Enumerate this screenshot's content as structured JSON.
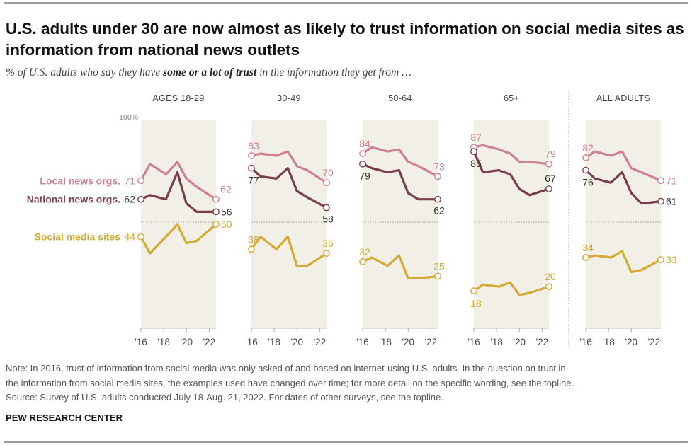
{
  "title": "U.S. adults under 30 are now almost as likely to trust information on social media sites as information from national news outlets",
  "subtitle": {
    "pre": "% of U.S. adults who say they have ",
    "bold": "some or a lot of trust",
    "post": " in the information they get from …"
  },
  "notes": {
    "line1": "Note: In 2016, trust of information from social media was only asked of and based on internet-using U.S. adults. In the question on trust in",
    "line2": "the information from social media sites, the examples used have changed over time; for more detail on the specific wording, see the topline.",
    "line3": "Source: Survey of U.S. adults conducted July 18-Aug. 21, 2022. For dates of other surveys, see the topline.",
    "org": "PEW RESEARCH CENTER"
  },
  "colors": {
    "local": "#cf7f92",
    "national": "#7b3c4c",
    "social": "#d4aa34",
    "panel_bg": "#f1efe6"
  },
  "chart_data": {
    "type": "line",
    "ylim": [
      0,
      100
    ],
    "y_top_label": "100%",
    "x_ticks": [
      "'16",
      "'18",
      "'20",
      "'22"
    ],
    "series_labels": {
      "local": "Local news orgs.",
      "national": "National news orgs.",
      "social": "Social media sites"
    },
    "panels": [
      {
        "name": "AGES 18-29",
        "local": {
          "x": [
            2016,
            2016.8,
            2018.2,
            2019.2,
            2020,
            2020.9,
            2022.6
          ],
          "y": [
            71,
            79,
            74,
            80,
            72,
            68,
            62
          ],
          "start_label": "71",
          "end_label": "62"
        },
        "national": {
          "x": [
            2016,
            2016.8,
            2018.2,
            2019.2,
            2020,
            2020.9,
            2022.6
          ],
          "y": [
            62,
            64,
            62,
            75,
            60,
            56,
            56
          ],
          "start_label": "62",
          "end_label": "56"
        },
        "social": {
          "x": [
            2016,
            2016.8,
            2018.2,
            2019.2,
            2020,
            2020.9,
            2022.6
          ],
          "y": [
            44,
            36,
            44,
            50,
            41,
            42,
            50
          ],
          "start_label": "44",
          "end_label": "50"
        }
      },
      {
        "name": "30-49",
        "local": {
          "x": [
            2016,
            2016.8,
            2018.2,
            2019.2,
            2020,
            2020.9,
            2022.6
          ],
          "y": [
            83,
            84,
            83,
            85,
            78,
            76,
            70
          ],
          "start_label": "83",
          "end_label": "70"
        },
        "national": {
          "x": [
            2016,
            2016.8,
            2018.2,
            2019.2,
            2020,
            2020.9,
            2022.6
          ],
          "y": [
            77,
            73,
            72,
            77,
            66,
            63,
            58
          ],
          "start_label": "77",
          "end_label": "58"
        },
        "social": {
          "x": [
            2016,
            2016.8,
            2018.2,
            2019.2,
            2020,
            2020.9,
            2022.6
          ],
          "y": [
            38,
            44,
            38,
            44,
            30,
            30,
            36
          ],
          "start_label": "38",
          "end_label": "36"
        }
      },
      {
        "name": "50-64",
        "local": {
          "x": [
            2016,
            2016.8,
            2018.2,
            2019.2,
            2020,
            2020.9,
            2022.6
          ],
          "y": [
            84,
            87,
            85,
            86,
            80,
            78,
            73
          ],
          "start_label": "84",
          "end_label": "73"
        },
        "national": {
          "x": [
            2016,
            2016.8,
            2018.2,
            2019.2,
            2020,
            2020.9,
            2022.6
          ],
          "y": [
            79,
            77,
            75,
            76,
            65,
            62,
            62
          ],
          "start_label": "79",
          "end_label": "62"
        },
        "social": {
          "x": [
            2016,
            2016.8,
            2018.2,
            2019.2,
            2020,
            2020.9,
            2022.6
          ],
          "y": [
            32,
            34,
            30,
            35,
            24,
            24,
            25
          ],
          "start_label": "32",
          "end_label": "25"
        }
      },
      {
        "name": "65+",
        "local": {
          "x": [
            2016,
            2016.8,
            2018.2,
            2019.2,
            2020,
            2020.9,
            2022.6
          ],
          "y": [
            87,
            88,
            86,
            84,
            80,
            80,
            79
          ],
          "start_label": "87",
          "end_label": "79"
        },
        "national": {
          "x": [
            2016,
            2016.8,
            2018.2,
            2019.2,
            2020,
            2020.9,
            2022.6
          ],
          "y": [
            85,
            75,
            76,
            74,
            67,
            64,
            67
          ],
          "start_label": "85",
          "end_label": "67"
        },
        "social": {
          "x": [
            2016,
            2016.8,
            2018.2,
            2019.2,
            2020,
            2020.9,
            2022.6
          ],
          "y": [
            18,
            21,
            20,
            22,
            16,
            17,
            20
          ],
          "start_label": "18",
          "end_label": "20"
        }
      },
      {
        "name": "ALL ADULTS",
        "local": {
          "x": [
            2016,
            2016.8,
            2018.2,
            2019.2,
            2020,
            2020.9,
            2022.6
          ],
          "y": [
            82,
            85,
            83,
            85,
            77,
            75,
            71
          ],
          "start_label": "82",
          "end_label": "71"
        },
        "national": {
          "x": [
            2016,
            2016.8,
            2018.2,
            2019.2,
            2020,
            2020.9,
            2022.6
          ],
          "y": [
            76,
            72,
            70,
            75,
            65,
            60,
            61
          ],
          "start_label": "76",
          "end_label": "61"
        },
        "social": {
          "x": [
            2016,
            2016.8,
            2018.2,
            2019.2,
            2020,
            2020.9,
            2022.6
          ],
          "y": [
            34,
            35,
            34,
            37,
            27,
            28,
            33
          ],
          "start_label": "34",
          "end_label": "33"
        }
      }
    ]
  }
}
